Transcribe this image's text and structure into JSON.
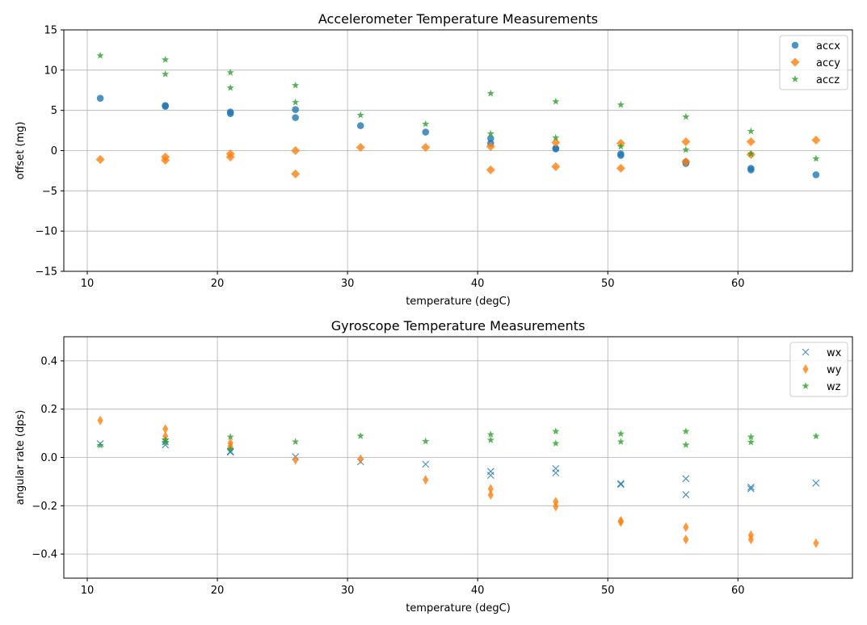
{
  "chart_data": [
    {
      "type": "scatter",
      "title": "Accelerometer Temperature Measurements",
      "xlabel": "temperature (degC)",
      "ylabel": "offset (mg)",
      "xlim": [
        8.2,
        68.8
      ],
      "ylim": [
        -15,
        15
      ],
      "xticks": [
        10,
        20,
        30,
        40,
        50,
        60
      ],
      "yticks": [
        -15,
        -10,
        -5,
        0,
        5,
        10,
        15
      ],
      "tick_labels": {
        "x": [
          "10",
          "20",
          "30",
          "40",
          "50",
          "60"
        ],
        "y": [
          "−15",
          "−10",
          "−5",
          "0",
          "5",
          "10",
          "15"
        ]
      },
      "grid": true,
      "legend_position": "upper-right",
      "series": [
        {
          "name": "accx",
          "marker": "circle",
          "color": "#1f77b4",
          "points": [
            [
              11,
              6.5
            ],
            [
              16,
              5.6
            ],
            [
              16,
              5.5
            ],
            [
              21,
              4.8
            ],
            [
              21,
              4.6
            ],
            [
              26,
              5.1
            ],
            [
              26,
              4.1
            ],
            [
              31,
              3.1
            ],
            [
              36,
              2.3
            ],
            [
              41,
              1.5
            ],
            [
              41,
              0.9
            ],
            [
              46,
              0.3
            ],
            [
              46,
              0.2
            ],
            [
              51,
              -0.4
            ],
            [
              51,
              -0.6
            ],
            [
              56,
              -1.4
            ],
            [
              56,
              -1.6
            ],
            [
              61,
              -2.2
            ],
            [
              61,
              -2.4
            ],
            [
              66,
              -3.0
            ]
          ]
        },
        {
          "name": "accy",
          "marker": "diamond",
          "color": "#ff7f0e",
          "points": [
            [
              11,
              -1.1
            ],
            [
              16,
              -0.8
            ],
            [
              16,
              -1.2
            ],
            [
              21,
              -0.4
            ],
            [
              21,
              -0.8
            ],
            [
              26,
              0.0
            ],
            [
              26,
              -2.9
            ],
            [
              31,
              0.4
            ],
            [
              36,
              0.4
            ],
            [
              41,
              0.5
            ],
            [
              41,
              -2.4
            ],
            [
              46,
              1.0
            ],
            [
              46,
              -2.0
            ],
            [
              51,
              0.9
            ],
            [
              51,
              -2.2
            ],
            [
              56,
              1.1
            ],
            [
              56,
              -1.4
            ],
            [
              61,
              1.1
            ],
            [
              61,
              -0.5
            ],
            [
              66,
              1.3
            ]
          ]
        },
        {
          "name": "accz",
          "marker": "star",
          "color": "#2ca02c",
          "points": [
            [
              11,
              11.8
            ],
            [
              16,
              11.3
            ],
            [
              16,
              9.5
            ],
            [
              21,
              9.7
            ],
            [
              21,
              7.8
            ],
            [
              26,
              8.1
            ],
            [
              26,
              6.0
            ],
            [
              31,
              4.4
            ],
            [
              36,
              3.3
            ],
            [
              41,
              7.1
            ],
            [
              41,
              2.1
            ],
            [
              46,
              6.1
            ],
            [
              46,
              1.6
            ],
            [
              51,
              5.7
            ],
            [
              51,
              0.5
            ],
            [
              56,
              4.2
            ],
            [
              56,
              0.1
            ],
            [
              61,
              2.4
            ],
            [
              61,
              -0.4
            ],
            [
              66,
              -1.0
            ]
          ]
        }
      ]
    },
    {
      "type": "scatter",
      "title": "Gyroscope Temperature Measurements",
      "xlabel": "temperature (degC)",
      "ylabel": "angular rate (dps)",
      "xlim": [
        8.2,
        68.8
      ],
      "ylim": [
        -0.5,
        0.5
      ],
      "xticks": [
        10,
        20,
        30,
        40,
        50,
        60
      ],
      "yticks": [
        -0.4,
        -0.2,
        0.0,
        0.2,
        0.4
      ],
      "tick_labels": {
        "x": [
          "10",
          "20",
          "30",
          "40",
          "50",
          "60"
        ],
        "y": [
          "−0.4",
          "−0.2",
          "0.0",
          "0.2",
          "0.4"
        ]
      },
      "grid": true,
      "legend_position": "upper-right",
      "series": [
        {
          "name": "wx",
          "marker": "x",
          "color": "#1f77b4",
          "points": [
            [
              11,
              0.057
            ],
            [
              16,
              0.052
            ],
            [
              16,
              0.065
            ],
            [
              21,
              0.022
            ],
            [
              21,
              0.025
            ],
            [
              26,
              0.003
            ],
            [
              31,
              -0.018
            ],
            [
              36,
              -0.028
            ],
            [
              41,
              -0.058
            ],
            [
              41,
              -0.074
            ],
            [
              46,
              -0.046
            ],
            [
              46,
              -0.064
            ],
            [
              51,
              -0.108
            ],
            [
              51,
              -0.112
            ],
            [
              56,
              -0.088
            ],
            [
              56,
              -0.154
            ],
            [
              61,
              -0.123
            ],
            [
              61,
              -0.13
            ],
            [
              66,
              -0.106
            ]
          ]
        },
        {
          "name": "wy",
          "marker": "thin-diamond",
          "color": "#ff7f0e",
          "points": [
            [
              11,
              0.153
            ],
            [
              16,
              0.118
            ],
            [
              16,
              0.088
            ],
            [
              21,
              0.06
            ],
            [
              21,
              0.046
            ],
            [
              26,
              -0.01
            ],
            [
              31,
              -0.007
            ],
            [
              36,
              -0.093
            ],
            [
              41,
              -0.13
            ],
            [
              41,
              -0.155
            ],
            [
              46,
              -0.183
            ],
            [
              46,
              -0.203
            ],
            [
              51,
              -0.262
            ],
            [
              51,
              -0.268
            ],
            [
              56,
              -0.289
            ],
            [
              56,
              -0.34
            ],
            [
              61,
              -0.322
            ],
            [
              61,
              -0.34
            ],
            [
              66,
              -0.355
            ]
          ]
        },
        {
          "name": "wz",
          "marker": "star",
          "color": "#2ca02c",
          "points": [
            [
              11,
              0.05
            ],
            [
              16,
              0.073
            ],
            [
              16,
              0.063
            ],
            [
              21,
              0.085
            ],
            [
              21,
              0.035
            ],
            [
              26,
              0.065
            ],
            [
              31,
              0.089
            ],
            [
              36,
              0.067
            ],
            [
              41,
              0.095
            ],
            [
              41,
              0.072
            ],
            [
              46,
              0.108
            ],
            [
              46,
              0.058
            ],
            [
              51,
              0.098
            ],
            [
              51,
              0.065
            ],
            [
              56,
              0.108
            ],
            [
              56,
              0.052
            ],
            [
              61,
              0.085
            ],
            [
              61,
              0.063
            ],
            [
              66,
              0.088
            ]
          ]
        }
      ]
    }
  ]
}
